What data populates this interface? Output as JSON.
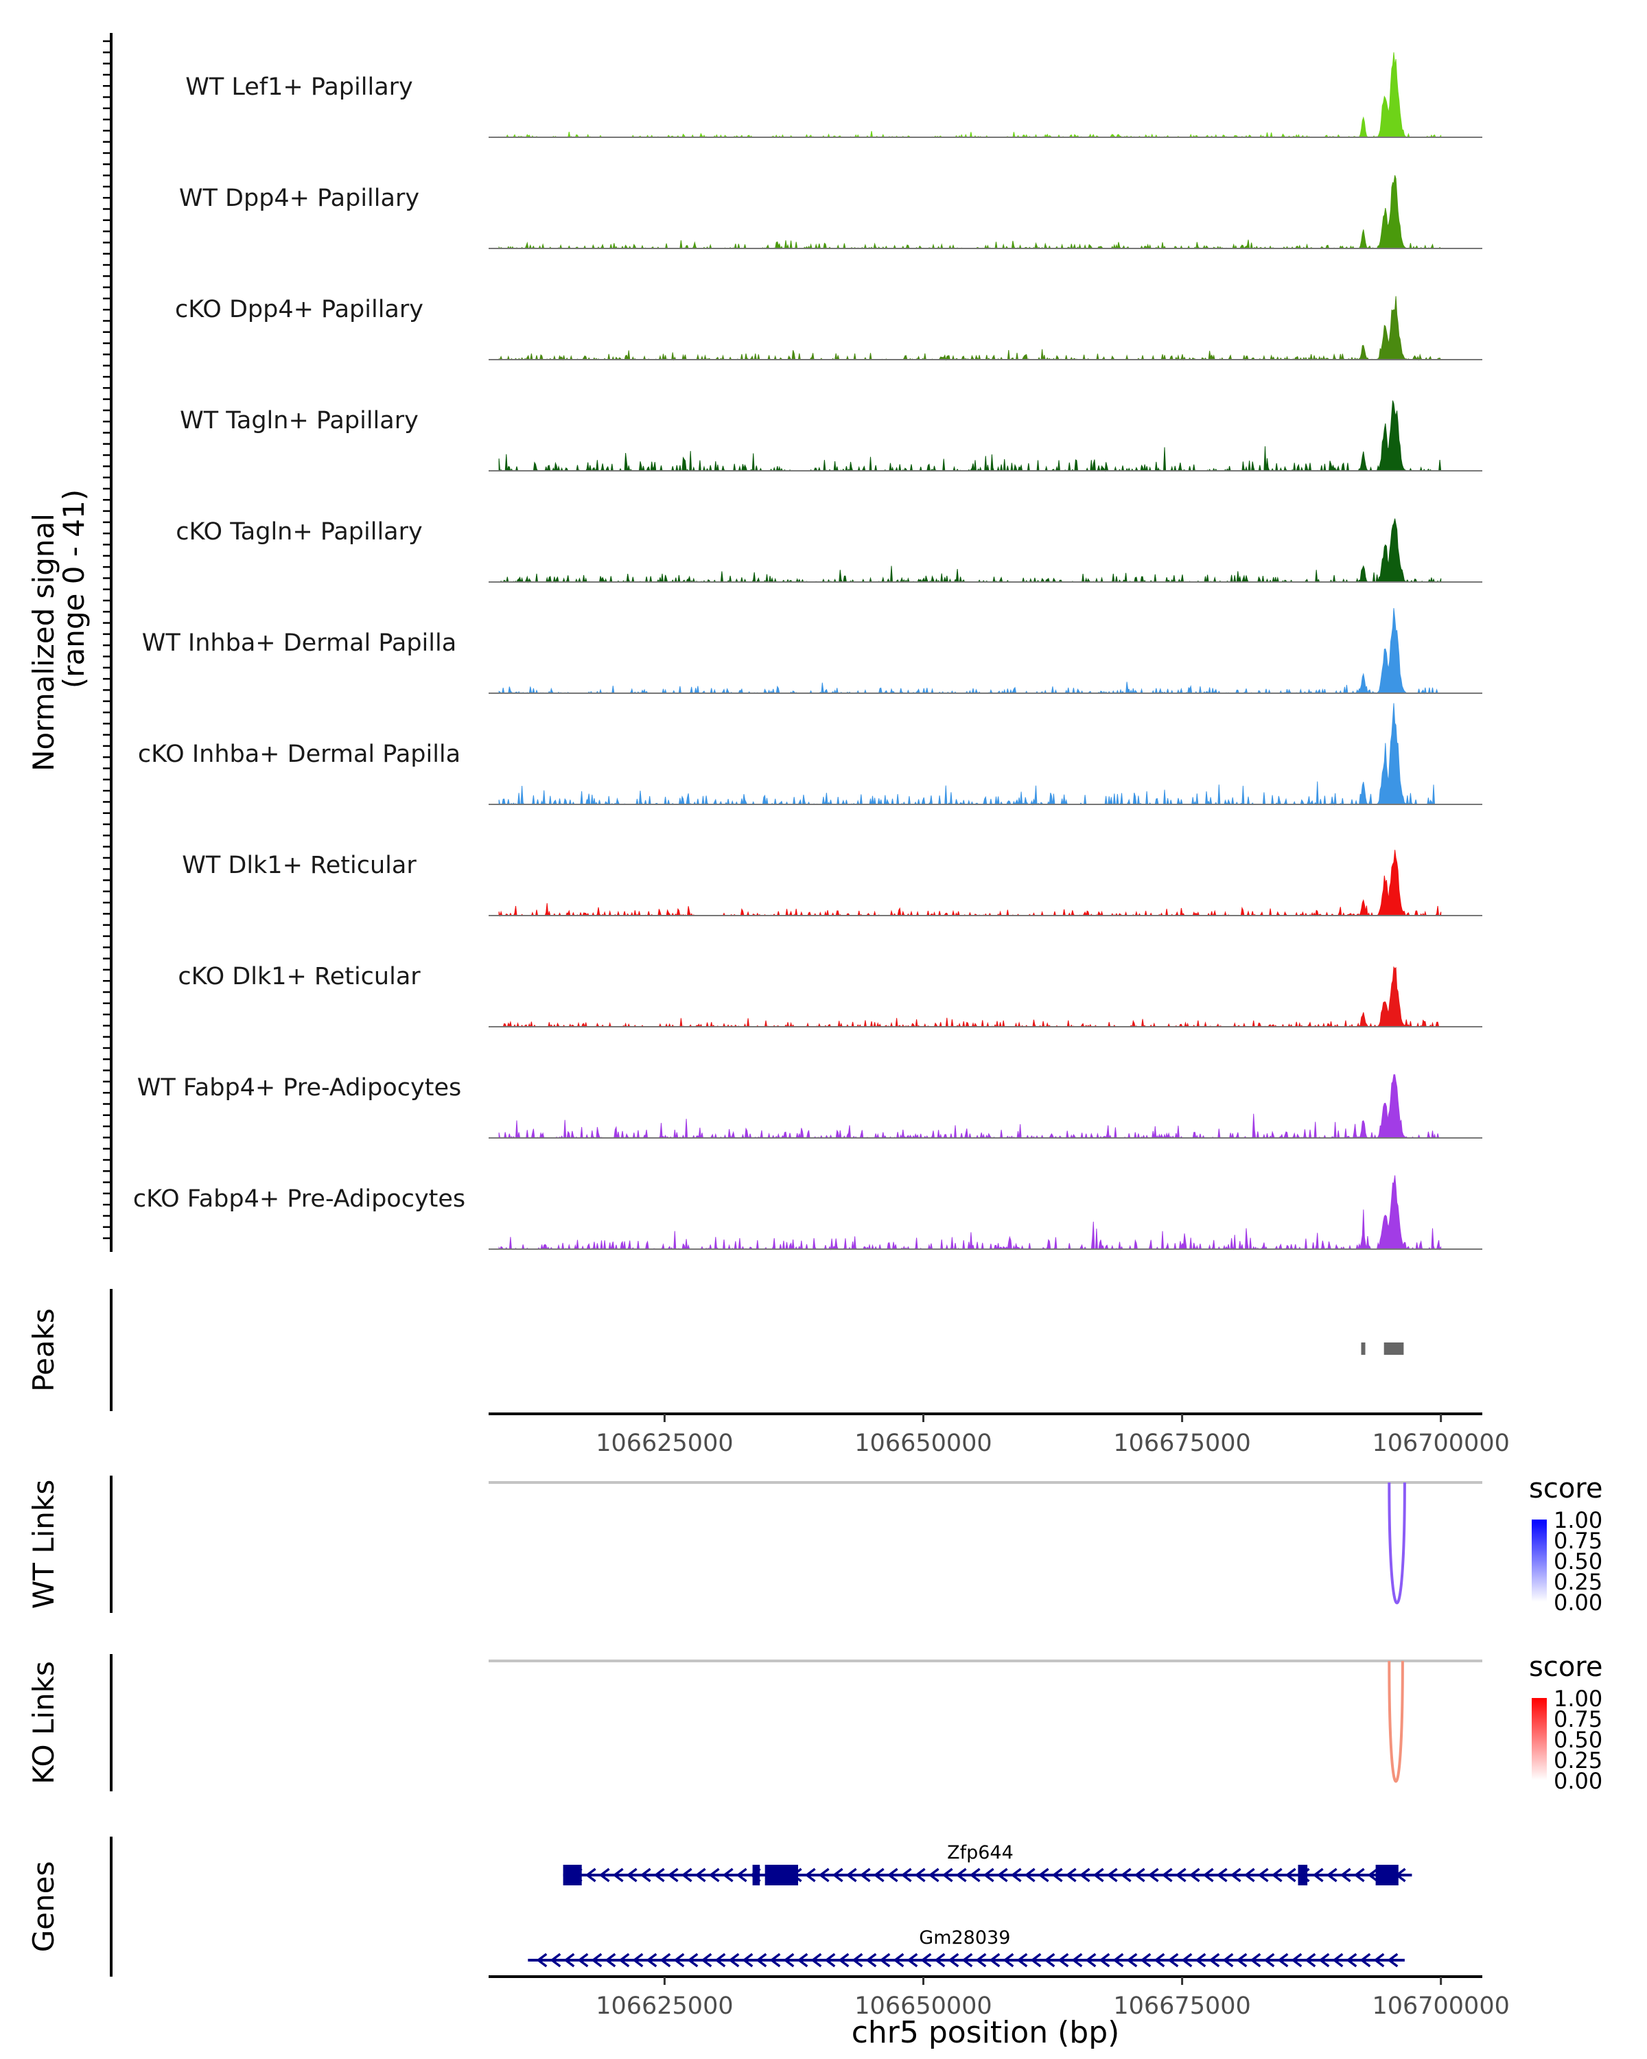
{
  "chart_data": {
    "type": "area",
    "title": "",
    "xlabel": "chr5 position (bp)",
    "xlim": [
      106608000,
      106704000
    ],
    "x_ticks": [
      106625000,
      106650000,
      106675000,
      106700000
    ],
    "x_tick_labels": [
      "106625000",
      "106650000",
      "106675000",
      "106700000"
    ],
    "coverage": {
      "ylabel": "Normalized signal",
      "ylabel_range": "(range 0 - 41)",
      "ylim": [
        0,
        41
      ],
      "main_peaks": [
        {
          "start": 106693000,
          "end": 106698000,
          "summit": 106695500
        }
      ],
      "tracks": [
        {
          "name": "WT Lef1+ Papillary",
          "color": "#6ED318",
          "peak_max": 36,
          "background": 1.5,
          "seed": 11
        },
        {
          "name": "WT Dpp4+ Papillary",
          "color": "#4A9A0C",
          "peak_max": 32,
          "background": 2.5,
          "seed": 23
        },
        {
          "name": "cKO Dpp4+ Papillary",
          "color": "#4A8A10",
          "peak_max": 26,
          "background": 3.0,
          "seed": 37
        },
        {
          "name": "WT Tagln+ Papillary",
          "color": "#0D5C0D",
          "peak_max": 31,
          "background": 5.5,
          "seed": 41
        },
        {
          "name": "cKO Tagln+ Papillary",
          "color": "#0D5C0D",
          "peak_max": 29,
          "background": 4.0,
          "seed": 53
        },
        {
          "name": "WT Inhba+ Dermal Papilla",
          "color": "#3C95E5",
          "peak_max": 35,
          "background": 3.0,
          "seed": 67
        },
        {
          "name": "cKO Inhba+ Dermal Papilla",
          "color": "#3C95E5",
          "peak_max": 41,
          "background": 6.0,
          "seed": 71
        },
        {
          "name": "WT Dlk1+ Reticular",
          "color": "#F01010",
          "peak_max": 28,
          "background": 3.0,
          "seed": 83
        },
        {
          "name": "cKO Dlk1+ Reticular",
          "color": "#E81818",
          "peak_max": 24,
          "background": 3.0,
          "seed": 97
        },
        {
          "name": "WT Fabp4+ Pre-Adipocytes",
          "color": "#A23CE6",
          "peak_max": 28,
          "background": 5.0,
          "seed": 101
        },
        {
          "name": "cKO Fabp4+ Pre-Adipocytes",
          "color": "#A23CE6",
          "peak_max": 30,
          "background": 6.0,
          "seed": 113
        }
      ]
    },
    "peaks_track": {
      "label": "Peaks",
      "color": "#666666",
      "regions": [
        {
          "start": 106692300,
          "end": 106692700
        },
        {
          "start": 106694500,
          "end": 106696400
        }
      ]
    },
    "links_tracks": [
      {
        "label": "WT Links",
        "color": "#8B5CF6",
        "score": 0.65,
        "arc": {
          "start": 106695000,
          "end": 106696500
        },
        "legend_title": "score",
        "legend_ticks": [
          "1.00",
          "0.75",
          "0.50",
          "0.25",
          "0.00"
        ],
        "legend_low": "#FFFFFF",
        "legend_high": "#0000FF"
      },
      {
        "label": "KO Links",
        "color": "#F4937C",
        "score": 0.55,
        "arc": {
          "start": 106695000,
          "end": 106696300
        },
        "legend_title": "score",
        "legend_ticks": [
          "1.00",
          "0.75",
          "0.50",
          "0.25",
          "0.00"
        ],
        "legend_low": "#FFFFFF",
        "legend_high": "#FF0000"
      }
    ],
    "genes_track": {
      "label": "Genes",
      "color": "#00008B",
      "genes": [
        {
          "name": "Zfp644",
          "start": 106615200,
          "end": 106697200,
          "strand": "-",
          "label_pos": 106655500,
          "exons": [
            [
              106615200,
              106617000
            ],
            [
              106633500,
              106634200
            ],
            [
              106634700,
              106637900
            ],
            [
              106686200,
              106687100
            ],
            [
              106693700,
              106695900
            ]
          ]
        },
        {
          "name": "Gm28039",
          "start": 106611800,
          "end": 106696500,
          "strand": "-",
          "label_pos": 106654000,
          "exons": []
        }
      ]
    }
  }
}
